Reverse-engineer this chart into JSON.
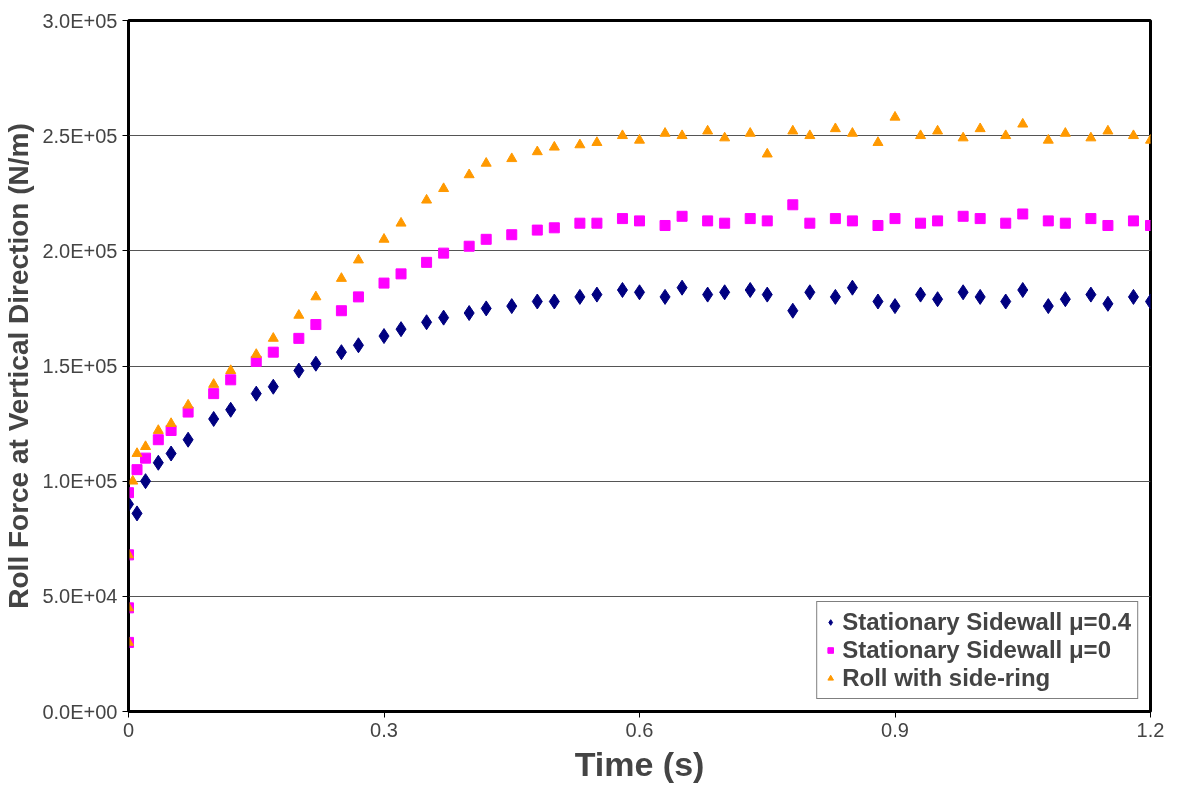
{
  "chart_data": {
    "type": "scatter",
    "xlabel": "Time (s)",
    "ylabel": "Roll Force at Vertical Direction (N/m)",
    "xlim": [
      0,
      1.2
    ],
    "xticks": [
      0,
      0.3,
      0.6,
      0.9,
      1.2
    ],
    "ylim": [
      0,
      300000
    ],
    "yticks": [
      {
        "value": 0,
        "label": "0.0E+00"
      },
      {
        "value": 50000,
        "label": "5.0E+04"
      },
      {
        "value": 100000,
        "label": "1.0E+05"
      },
      {
        "value": 150000,
        "label": "1.5E+05"
      },
      {
        "value": 200000,
        "label": "2.0E+05"
      },
      {
        "value": 250000,
        "label": "2.5E+05"
      },
      {
        "value": 300000,
        "label": "3.0E+05"
      }
    ],
    "grid": "y",
    "legend": "bottom right",
    "series": [
      {
        "name": "Stationary Sidewall μ=0.4",
        "color": "#000080",
        "marker": "diamond",
        "x": [
          0,
          0.01,
          0.02,
          0.035,
          0.05,
          0.07,
          0.1,
          0.12,
          0.15,
          0.17,
          0.2,
          0.22,
          0.25,
          0.27,
          0.3,
          0.32,
          0.35,
          0.37,
          0.4,
          0.42,
          0.45,
          0.48,
          0.5,
          0.53,
          0.55,
          0.58,
          0.6,
          0.63,
          0.65,
          0.68,
          0.7,
          0.73,
          0.75,
          0.78,
          0.8,
          0.83,
          0.85,
          0.88,
          0.9,
          0.93,
          0.95,
          0.98,
          1.0,
          1.03,
          1.05,
          1.08,
          1.1,
          1.13,
          1.15,
          1.18,
          1.2
        ],
        "values": [
          90000,
          86000,
          100000,
          108000,
          112000,
          118000,
          127000,
          131000,
          138000,
          141000,
          148000,
          151000,
          156000,
          159000,
          163000,
          166000,
          169000,
          171000,
          173000,
          175000,
          176000,
          178000,
          178000,
          180000,
          181000,
          183000,
          182000,
          180000,
          184000,
          181000,
          182000,
          183000,
          181000,
          174000,
          182000,
          180000,
          184000,
          178000,
          176000,
          181000,
          179000,
          182000,
          180000,
          178000,
          183000,
          176000,
          179000,
          181000,
          177000,
          180000,
          178000
        ]
      },
      {
        "name": "Stationary Sidewall μ=0",
        "color": "#ff00ff",
        "marker": "square",
        "x": [
          0,
          0,
          0,
          0,
          0.01,
          0.02,
          0.035,
          0.05,
          0.07,
          0.1,
          0.12,
          0.15,
          0.17,
          0.2,
          0.22,
          0.25,
          0.27,
          0.3,
          0.32,
          0.35,
          0.37,
          0.4,
          0.42,
          0.45,
          0.48,
          0.5,
          0.53,
          0.55,
          0.58,
          0.6,
          0.63,
          0.65,
          0.68,
          0.7,
          0.73,
          0.75,
          0.78,
          0.8,
          0.83,
          0.85,
          0.88,
          0.9,
          0.93,
          0.95,
          0.98,
          1.0,
          1.03,
          1.05,
          1.08,
          1.1,
          1.13,
          1.15,
          1.18,
          1.2
        ],
        "values": [
          30000,
          45000,
          68000,
          95000,
          105000,
          110000,
          118000,
          122000,
          130000,
          138000,
          144000,
          152000,
          156000,
          162000,
          168000,
          174000,
          180000,
          186000,
          190000,
          195000,
          199000,
          202000,
          205000,
          207000,
          209000,
          210000,
          212000,
          212000,
          214000,
          213000,
          211000,
          215000,
          213000,
          212000,
          214000,
          213000,
          220000,
          212000,
          214000,
          213000,
          211000,
          214000,
          212000,
          213000,
          215000,
          214000,
          212000,
          216000,
          213000,
          212000,
          214000,
          211000,
          213000,
          211000
        ]
      },
      {
        "name": "Roll with side-ring",
        "color": "#ff9900",
        "marker": "triangle",
        "x": [
          0,
          0,
          0,
          0.005,
          0.01,
          0.02,
          0.035,
          0.05,
          0.07,
          0.1,
          0.12,
          0.15,
          0.17,
          0.2,
          0.22,
          0.25,
          0.27,
          0.3,
          0.32,
          0.35,
          0.37,
          0.4,
          0.42,
          0.45,
          0.48,
          0.5,
          0.53,
          0.55,
          0.58,
          0.6,
          0.63,
          0.65,
          0.68,
          0.7,
          0.73,
          0.75,
          0.78,
          0.8,
          0.83,
          0.85,
          0.88,
          0.9,
          0.93,
          0.95,
          0.98,
          1.0,
          1.03,
          1.05,
          1.08,
          1.1,
          1.13,
          1.15,
          1.18,
          1.2
        ],
        "values": [
          30000,
          45000,
          68000,
          100000,
          112000,
          115000,
          122000,
          125000,
          133000,
          142000,
          148000,
          155000,
          162000,
          172000,
          180000,
          188000,
          196000,
          205000,
          212000,
          222000,
          227000,
          233000,
          238000,
          240000,
          243000,
          245000,
          246000,
          247000,
          250000,
          248000,
          251000,
          250000,
          252000,
          249000,
          251000,
          242000,
          252000,
          250000,
          253000,
          251000,
          247000,
          258000,
          250000,
          252000,
          249000,
          253000,
          250000,
          255000,
          248000,
          251000,
          249000,
          252000,
          250000,
          248000
        ]
      }
    ]
  }
}
